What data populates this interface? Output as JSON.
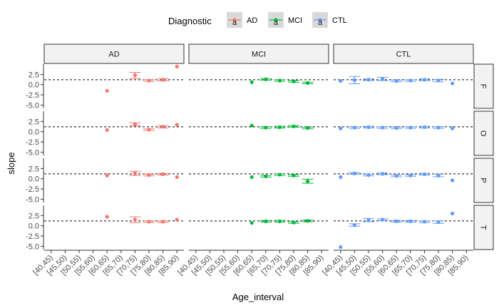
{
  "colors": {
    "AD": "#F8766D",
    "MCI": "#00BA38",
    "CTL": "#619CFF"
  },
  "legend": {
    "title": "Diagnostic",
    "items": [
      {
        "key": "AD",
        "label": "AD",
        "glyph": "a"
      },
      {
        "key": "MCI",
        "label": "MCI",
        "glyph": "a"
      },
      {
        "key": "CTL",
        "label": "CTL",
        "glyph": "a"
      }
    ]
  },
  "chart_data": {
    "type": "scatter",
    "subtype": "point with error bars, faceted grid (rows: F, O, P, T; columns: AD, MCI, CTL)",
    "xlabel": "Age_interval",
    "ylabel": "slope",
    "x_categories": [
      "[40,45)",
      "[45,50)",
      "[50,55)",
      "[55,60)",
      "[60,65)",
      "[65,70)",
      "[70,75)",
      "[75,80)",
      "[80,85)",
      "[85,90)"
    ],
    "y_ticks": [
      {
        "v": 2.5,
        "label": "2.5"
      },
      {
        "v": 0,
        "label": "0.0"
      },
      {
        "v": -2.5,
        "label": "-2.5"
      },
      {
        "v": -5,
        "label": "-5.0"
      }
    ],
    "ylim": [
      -5.8,
      5.0
    ],
    "reference_line": {
      "y": 1.2,
      "style": "dashed"
    },
    "columns": [
      "AD",
      "MCI",
      "CTL"
    ],
    "rows": [
      "F",
      "O",
      "P",
      "T"
    ],
    "grid": false,
    "legend_position": "top",
    "panels": [
      {
        "row": "F",
        "col": "AD",
        "points": [
          {
            "x": "[60,65)",
            "y": -1.5
          },
          {
            "x": "[70,75)",
            "y": 2.3,
            "lo": 1.5,
            "hi": 3.0
          },
          {
            "x": "[75,80)",
            "y": 1.0,
            "lo": 0.8,
            "hi": 1.2
          },
          {
            "x": "[80,85)",
            "y": 1.2,
            "lo": 0.9,
            "hi": 1.5
          },
          {
            "x": "[85,90)",
            "y": 4.4
          }
        ]
      },
      {
        "row": "F",
        "col": "MCI",
        "points": [
          {
            "x": "[60,65)",
            "y": 0.6
          },
          {
            "x": "[65,70)",
            "y": 1.3,
            "lo": 1.1,
            "hi": 1.5
          },
          {
            "x": "[70,75)",
            "y": 1.0,
            "lo": 0.8,
            "hi": 1.2
          },
          {
            "x": "[75,80)",
            "y": 0.8,
            "lo": 0.6,
            "hi": 1.0
          },
          {
            "x": "[80,85)",
            "y": 0.4,
            "lo": 0.2,
            "hi": 0.6
          }
        ]
      },
      {
        "row": "F",
        "col": "CTL",
        "points": [
          {
            "x": "[40,45)",
            "y": 0.9
          },
          {
            "x": "[45,50)",
            "y": 1.1,
            "lo": 0.2,
            "hi": 2.0
          },
          {
            "x": "[50,55)",
            "y": 1.2,
            "lo": 1.0,
            "hi": 1.4
          },
          {
            "x": "[55,60)",
            "y": 1.4,
            "lo": 1.0,
            "hi": 1.8
          },
          {
            "x": "[60,65)",
            "y": 0.9,
            "lo": 0.7,
            "hi": 1.1
          },
          {
            "x": "[65,70)",
            "y": 1.0,
            "lo": 0.8,
            "hi": 1.2
          },
          {
            "x": "[70,75)",
            "y": 1.2,
            "lo": 1.0,
            "hi": 1.4
          },
          {
            "x": "[75,80)",
            "y": 1.0,
            "lo": 0.7,
            "hi": 1.3
          },
          {
            "x": "[80,85)",
            "y": 0.3
          }
        ]
      },
      {
        "row": "O",
        "col": "AD",
        "points": [
          {
            "x": "[60,65)",
            "y": 0.4
          },
          {
            "x": "[70,75)",
            "y": 1.8,
            "lo": 1.4,
            "hi": 2.2
          },
          {
            "x": "[75,80)",
            "y": 0.5,
            "lo": 0.3,
            "hi": 0.7
          },
          {
            "x": "[80,85)",
            "y": 1.2,
            "lo": 0.9,
            "hi": 1.5
          },
          {
            "x": "[85,90)",
            "y": 1.7
          }
        ]
      },
      {
        "row": "O",
        "col": "MCI",
        "points": [
          {
            "x": "[60,65)",
            "y": 1.5
          },
          {
            "x": "[65,70)",
            "y": 1.0,
            "lo": 0.8,
            "hi": 1.2
          },
          {
            "x": "[70,75)",
            "y": 1.1,
            "lo": 0.9,
            "hi": 1.3
          },
          {
            "x": "[75,80)",
            "y": 1.3,
            "lo": 1.1,
            "hi": 1.5
          },
          {
            "x": "[80,85)",
            "y": 0.9,
            "lo": 0.7,
            "hi": 1.1
          }
        ]
      },
      {
        "row": "O",
        "col": "CTL",
        "points": [
          {
            "x": "[40,45)",
            "y": 0.8
          },
          {
            "x": "[45,50)",
            "y": 1.0,
            "lo": 0.8,
            "hi": 1.2
          },
          {
            "x": "[50,55)",
            "y": 1.1,
            "lo": 0.9,
            "hi": 1.3
          },
          {
            "x": "[55,60)",
            "y": 1.0,
            "lo": 0.8,
            "hi": 1.2
          },
          {
            "x": "[60,65)",
            "y": 0.9,
            "lo": 0.7,
            "hi": 1.1
          },
          {
            "x": "[65,70)",
            "y": 1.0,
            "lo": 0.8,
            "hi": 1.2
          },
          {
            "x": "[70,75)",
            "y": 1.1,
            "lo": 0.9,
            "hi": 1.3
          },
          {
            "x": "[75,80)",
            "y": 1.0,
            "lo": 0.8,
            "hi": 1.2
          },
          {
            "x": "[80,85)",
            "y": 0.8
          }
        ]
      },
      {
        "row": "P",
        "col": "AD",
        "points": [
          {
            "x": "[60,65)",
            "y": 0.8
          },
          {
            "x": "[70,75)",
            "y": 1.3,
            "lo": 0.8,
            "hi": 1.8
          },
          {
            "x": "[75,80)",
            "y": 0.9,
            "lo": 0.7,
            "hi": 1.1
          },
          {
            "x": "[80,85)",
            "y": 1.1,
            "lo": 0.9,
            "hi": 1.3
          },
          {
            "x": "[85,90)",
            "y": 0.4
          }
        ]
      },
      {
        "row": "P",
        "col": "MCI",
        "points": [
          {
            "x": "[60,65)",
            "y": 0.4
          },
          {
            "x": "[65,70)",
            "y": 0.6,
            "lo": 0.4,
            "hi": 0.8
          },
          {
            "x": "[70,75)",
            "y": 1.0,
            "lo": 0.8,
            "hi": 1.2
          },
          {
            "x": "[75,80)",
            "y": 0.8,
            "lo": 0.6,
            "hi": 1.0
          },
          {
            "x": "[80,85)",
            "y": -0.6,
            "lo": -1.1,
            "hi": -0.1
          }
        ]
      },
      {
        "row": "P",
        "col": "CTL",
        "points": [
          {
            "x": "[40,45)",
            "y": 0.4
          },
          {
            "x": "[45,50)",
            "y": 1.3,
            "lo": 1.1,
            "hi": 1.5
          },
          {
            "x": "[50,55)",
            "y": 0.9,
            "lo": 0.7,
            "hi": 1.1
          },
          {
            "x": "[55,60)",
            "y": 1.2,
            "lo": 1.0,
            "hi": 1.4
          },
          {
            "x": "[60,65)",
            "y": 0.7,
            "lo": 0.5,
            "hi": 0.9
          },
          {
            "x": "[65,70)",
            "y": 0.8,
            "lo": 0.6,
            "hi": 1.0
          },
          {
            "x": "[70,75)",
            "y": 1.1,
            "lo": 0.9,
            "hi": 1.3
          },
          {
            "x": "[75,80)",
            "y": 0.8,
            "lo": 0.5,
            "hi": 1.1
          },
          {
            "x": "[80,85)",
            "y": -0.4
          }
        ]
      },
      {
        "row": "T",
        "col": "AD",
        "points": [
          {
            "x": "[60,65)",
            "y": 2.2
          },
          {
            "x": "[70,75)",
            "y": 1.5,
            "lo": 0.8,
            "hi": 2.2
          },
          {
            "x": "[75,80)",
            "y": 1.0,
            "lo": 0.8,
            "hi": 1.2
          },
          {
            "x": "[80,85)",
            "y": 1.0,
            "lo": 0.8,
            "hi": 1.2
          },
          {
            "x": "[85,90)",
            "y": 1.5
          }
        ]
      },
      {
        "row": "T",
        "col": "MCI",
        "points": [
          {
            "x": "[60,65)",
            "y": 0.7
          },
          {
            "x": "[65,70)",
            "y": 1.1,
            "lo": 0.9,
            "hi": 1.3
          },
          {
            "x": "[70,75)",
            "y": 1.1,
            "lo": 0.9,
            "hi": 1.3
          },
          {
            "x": "[75,80)",
            "y": 0.8,
            "lo": 0.6,
            "hi": 1.0
          },
          {
            "x": "[80,85)",
            "y": 1.2,
            "lo": 1.0,
            "hi": 1.4
          }
        ]
      },
      {
        "row": "T",
        "col": "CTL",
        "points": [
          {
            "x": "[40,45)",
            "y": -5.2
          },
          {
            "x": "[45,50)",
            "y": 0.2,
            "lo": -0.1,
            "hi": 0.5
          },
          {
            "x": "[50,55)",
            "y": 1.4,
            "lo": 1.0,
            "hi": 1.8
          },
          {
            "x": "[55,60)",
            "y": 1.5,
            "lo": 1.3,
            "hi": 1.7
          },
          {
            "x": "[60,65)",
            "y": 1.1,
            "lo": 0.9,
            "hi": 1.3
          },
          {
            "x": "[65,70)",
            "y": 1.1,
            "lo": 0.9,
            "hi": 1.3
          },
          {
            "x": "[70,75)",
            "y": 1.0,
            "lo": 0.8,
            "hi": 1.2
          },
          {
            "x": "[75,80)",
            "y": 0.9,
            "lo": 0.6,
            "hi": 1.2
          },
          {
            "x": "[80,85)",
            "y": 3.0
          }
        ]
      }
    ]
  }
}
